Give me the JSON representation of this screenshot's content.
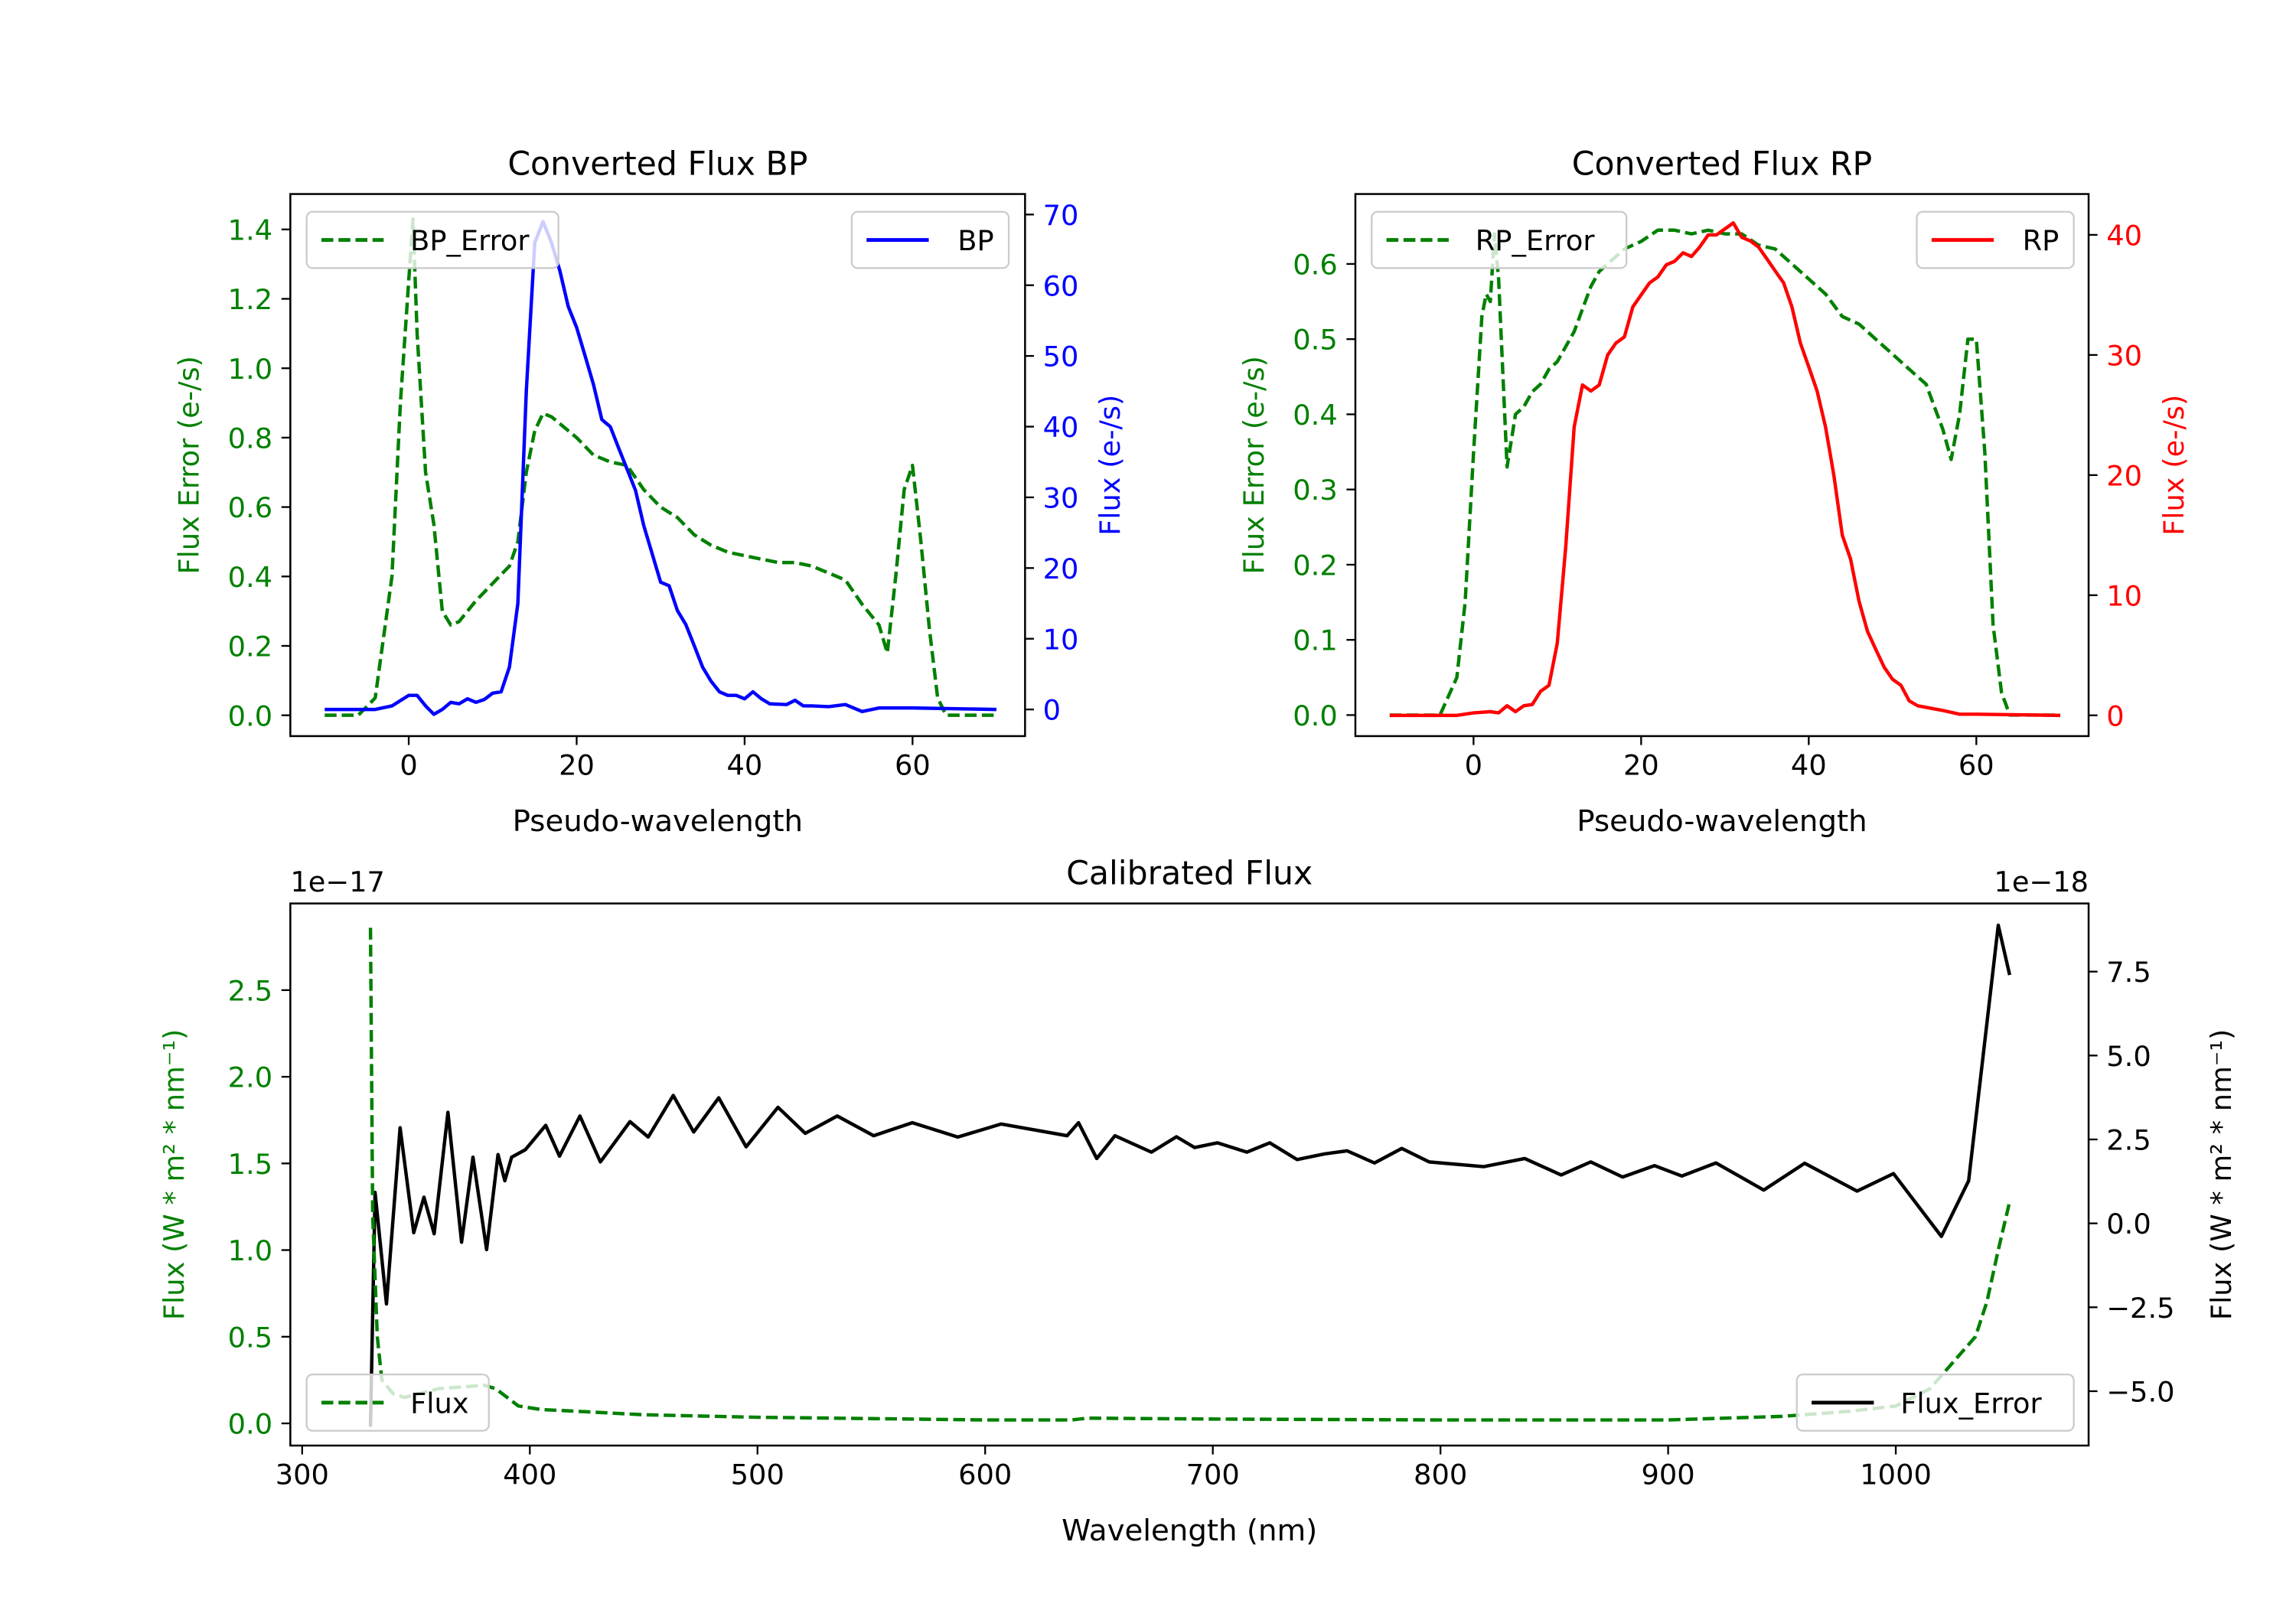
{
  "colors": {
    "green": "#008000",
    "blue": "#0000ff",
    "red": "#ff0000",
    "black": "#000000"
  },
  "chart_data": [
    {
      "id": "bp",
      "type": "line",
      "title": "Converted Flux BP",
      "xlabel": "Pseudo-wavelength",
      "ylabel_left": "Flux Error (e-/s)",
      "ylabel_right": "Flux (e-/s)",
      "xlim": [
        -14.1,
        73.4
      ],
      "ylim_left": [
        -0.06,
        1.502
      ],
      "ylim_right": [
        -3.77,
        72.9
      ],
      "xticks": [
        0,
        20,
        40,
        60
      ],
      "xtick_labels": [
        "0",
        "20",
        "40",
        "60"
      ],
      "yticks_left": [
        0.0,
        0.2,
        0.4,
        0.6,
        0.8,
        1.0,
        1.2,
        1.4
      ],
      "ytick_labels_left": [
        "0.0",
        "0.2",
        "0.4",
        "0.6",
        "0.8",
        "1.0",
        "1.2",
        "1.4"
      ],
      "yticks_right": [
        0,
        10,
        20,
        30,
        40,
        50,
        60,
        70
      ],
      "ytick_labels_right": [
        "0",
        "10",
        "20",
        "30",
        "40",
        "50",
        "60",
        "70"
      ],
      "left_color": "#008000",
      "right_color": "#0000ff",
      "legend_left": {
        "label": "BP_Error",
        "placement": "upper-left"
      },
      "legend_right": {
        "label": "BP",
        "placement": "upper-right"
      },
      "series": [
        {
          "name": "BP_Error",
          "axis": "left",
          "style": "dashed",
          "color": "#008000",
          "x": [
            -10,
            -6,
            -4,
            -2,
            -1,
            0,
            0.5,
            1,
            2,
            3,
            4,
            5,
            6,
            7,
            8,
            10,
            12,
            13,
            14,
            15,
            16,
            17,
            18,
            20,
            22,
            24,
            26,
            28,
            30,
            32,
            34,
            36,
            38,
            40,
            42,
            44,
            46,
            48,
            50,
            52,
            54,
            56,
            57,
            58,
            59,
            60,
            61,
            62,
            63,
            64,
            70
          ],
          "y": [
            0,
            0,
            0.05,
            0.4,
            0.9,
            1.25,
            1.43,
            1.1,
            0.7,
            0.55,
            0.3,
            0.26,
            0.27,
            0.3,
            0.33,
            0.38,
            0.43,
            0.5,
            0.7,
            0.82,
            0.87,
            0.86,
            0.84,
            0.8,
            0.75,
            0.73,
            0.72,
            0.65,
            0.6,
            0.57,
            0.52,
            0.49,
            0.47,
            0.46,
            0.45,
            0.44,
            0.44,
            0.43,
            0.41,
            0.39,
            0.32,
            0.26,
            0.18,
            0.4,
            0.65,
            0.72,
            0.5,
            0.25,
            0.05,
            0,
            0
          ]
        },
        {
          "name": "BP",
          "axis": "right",
          "style": "solid",
          "color": "#0000ff",
          "x": [
            -10,
            -4,
            -2,
            0,
            1,
            2,
            3,
            4,
            5,
            6,
            7,
            8,
            9,
            10,
            11,
            12,
            13,
            14,
            15,
            16,
            17,
            18,
            19,
            20,
            21,
            22,
            23,
            24,
            25,
            26,
            27,
            28,
            29,
            30,
            31,
            32,
            33,
            34,
            35,
            36,
            37,
            38,
            39,
            40,
            41,
            42,
            43,
            45,
            46,
            47,
            48,
            50,
            52,
            54,
            56,
            60,
            70
          ],
          "y": [
            0,
            0,
            0.5,
            2,
            2,
            0.5,
            -0.7,
            0,
            1,
            0.8,
            1.5,
            1,
            1.4,
            2.3,
            2.5,
            6,
            15,
            45,
            66,
            69,
            66,
            62,
            57,
            54,
            50,
            46,
            41,
            40,
            37,
            34,
            31,
            26,
            22,
            18,
            17.5,
            14,
            12,
            9,
            6,
            4,
            2.5,
            2,
            2,
            1.5,
            2.5,
            1.5,
            0.8,
            0.7,
            1.3,
            0.5,
            0.5,
            0.4,
            0.7,
            -0.3,
            0.2,
            0.2,
            0
          ]
        }
      ]
    },
    {
      "id": "rp",
      "type": "line",
      "title": "Converted Flux RP",
      "xlabel": "Pseudo-wavelength",
      "ylabel_left": "Flux Error (e-/s)",
      "ylabel_right": "Flux (e-/s)",
      "xlim": [
        -14.1,
        73.4
      ],
      "ylim_left": [
        -0.028,
        0.693
      ],
      "ylim_right": [
        -1.73,
        43.4
      ],
      "xticks": [
        0,
        20,
        40,
        60
      ],
      "xtick_labels": [
        "0",
        "20",
        "40",
        "60"
      ],
      "yticks_left": [
        0.0,
        0.1,
        0.2,
        0.3,
        0.4,
        0.5,
        0.6
      ],
      "ytick_labels_left": [
        "0.0",
        "0.1",
        "0.2",
        "0.3",
        "0.4",
        "0.5",
        "0.6"
      ],
      "yticks_right": [
        0,
        10,
        20,
        30,
        40
      ],
      "ytick_labels_right": [
        "0",
        "10",
        "20",
        "30",
        "40"
      ],
      "left_color": "#008000",
      "right_color": "#ff0000",
      "legend_left": {
        "label": "RP_Error",
        "placement": "upper-left"
      },
      "legend_right": {
        "label": "RP",
        "placement": "upper-right"
      },
      "series": [
        {
          "name": "RP_Error",
          "axis": "left",
          "style": "dashed",
          "color": "#008000",
          "x": [
            -10,
            -4,
            -2,
            -1,
            0,
            1,
            1.5,
            2,
            2.5,
            3,
            4,
            5,
            6,
            7,
            8,
            9,
            10,
            11,
            12,
            13,
            14,
            15,
            16,
            18,
            20,
            22,
            24,
            26,
            28,
            30,
            32,
            34,
            36,
            38,
            40,
            42,
            44,
            46,
            48,
            50,
            52,
            54,
            55,
            56,
            57,
            58,
            59,
            60,
            61,
            62,
            63,
            64,
            70
          ],
          "y": [
            0,
            0,
            0.05,
            0.15,
            0.35,
            0.53,
            0.56,
            0.55,
            0.64,
            0.58,
            0.33,
            0.4,
            0.41,
            0.43,
            0.44,
            0.46,
            0.47,
            0.49,
            0.51,
            0.54,
            0.57,
            0.59,
            0.6,
            0.62,
            0.63,
            0.645,
            0.645,
            0.64,
            0.645,
            0.64,
            0.64,
            0.625,
            0.62,
            0.6,
            0.58,
            0.56,
            0.53,
            0.52,
            0.5,
            0.48,
            0.46,
            0.44,
            0.41,
            0.38,
            0.34,
            0.4,
            0.5,
            0.5,
            0.35,
            0.12,
            0.03,
            0,
            0
          ]
        },
        {
          "name": "RP",
          "axis": "right",
          "style": "solid",
          "color": "#ff0000",
          "x": [
            -10,
            -2,
            0,
            2,
            3,
            4,
            5,
            6,
            7,
            8,
            9,
            10,
            11,
            12,
            13,
            14,
            15,
            16,
            17,
            18,
            19,
            20,
            21,
            22,
            23,
            24,
            25,
            26,
            27,
            28,
            29,
            30,
            31,
            32,
            33,
            34,
            35,
            36,
            37,
            38,
            39,
            40,
            41,
            42,
            43,
            44,
            45,
            46,
            47,
            48,
            49,
            50,
            51,
            52,
            53,
            56,
            58,
            60,
            70
          ],
          "y": [
            0,
            0,
            0.2,
            0.3,
            0.2,
            0.8,
            0.3,
            0.8,
            0.9,
            2,
            2.5,
            6,
            14,
            24,
            27.5,
            27,
            27.5,
            30,
            31,
            31.5,
            34,
            35,
            36,
            36.5,
            37.5,
            37.8,
            38.5,
            38.2,
            39,
            40,
            40,
            40.5,
            41,
            39.8,
            39.5,
            39,
            38,
            37,
            36,
            34,
            31,
            29,
            27,
            24,
            20,
            15,
            13,
            9.5,
            7,
            5.5,
            4,
            3,
            2.5,
            1.2,
            0.8,
            0.4,
            0.1,
            0.1,
            0
          ]
        }
      ]
    },
    {
      "id": "cal",
      "type": "line",
      "title": "Calibrated Flux",
      "xlabel": "Wavelength (nm)",
      "ylabel_left": "Flux (W * m² * nm⁻¹)",
      "ylabel_right": "Flux (W * m² * nm⁻¹)",
      "offset_left": "1e−17",
      "offset_right": "1e−18",
      "xlim": [
        294.8,
        1084.7
      ],
      "ylim_left": [
        -0.128,
        3.0
      ],
      "ylim_right": [
        -6.62,
        9.53
      ],
      "xticks": [
        300,
        400,
        500,
        600,
        700,
        800,
        900,
        1000
      ],
      "xtick_labels": [
        "300",
        "400",
        "500",
        "600",
        "700",
        "800",
        "900",
        "1000"
      ],
      "yticks_left": [
        0.0,
        0.5,
        1.0,
        1.5,
        2.0,
        2.5
      ],
      "ytick_labels_left": [
        "0.0",
        "0.5",
        "1.0",
        "1.5",
        "2.0",
        "2.5"
      ],
      "yticks_right": [
        -5.0,
        -2.5,
        0.0,
        2.5,
        5.0,
        7.5
      ],
      "ytick_labels_right": [
        "−5.0",
        "−2.5",
        "0.0",
        "2.5",
        "5.0",
        "7.5"
      ],
      "left_color": "#008000",
      "right_color": "#000000",
      "legend_left": {
        "label": "Flux",
        "placement": "lower-left"
      },
      "legend_right": {
        "label": "Flux_Error",
        "placement": "lower-right"
      },
      "series": [
        {
          "name": "Flux",
          "axis": "right",
          "style": "solid",
          "color": "#000000",
          "x": [
            330,
            332,
            337,
            343,
            349,
            353.5,
            358,
            364,
            370,
            375,
            381,
            386,
            389,
            392,
            398,
            407,
            413,
            422,
            431,
            444,
            452,
            463,
            472,
            483,
            495,
            509,
            521,
            535,
            551,
            568,
            588,
            607,
            636,
            641,
            649,
            657,
            673,
            684,
            692,
            702,
            715,
            725,
            737,
            749,
            759,
            771,
            783,
            795,
            819,
            837,
            853,
            866,
            880,
            894,
            906,
            921,
            942,
            960,
            983,
            999,
            1020,
            1032,
            1045,
            1050
          ],
          "y": [
            -6.06,
            0.92,
            -2.4,
            2.85,
            -0.28,
            0.78,
            -0.31,
            3.31,
            -0.56,
            1.97,
            -0.78,
            2.05,
            1.27,
            1.97,
            2.19,
            2.92,
            2.0,
            3.2,
            1.83,
            3.03,
            2.57,
            3.81,
            2.72,
            3.74,
            2.28,
            3.46,
            2.68,
            3.2,
            2.61,
            3.0,
            2.57,
            2.96,
            2.61,
            3.0,
            1.93,
            2.61,
            2.12,
            2.58,
            2.26,
            2.4,
            2.12,
            2.4,
            1.9,
            2.07,
            2.16,
            1.8,
            2.23,
            1.83,
            1.69,
            1.93,
            1.44,
            1.83,
            1.38,
            1.72,
            1.41,
            1.8,
            0.99,
            1.79,
            0.96,
            1.48,
            -0.39,
            1.27,
            8.88,
            7.4
          ]
        },
        {
          "name": "Flux_Error",
          "axis": "left",
          "style": "dashed",
          "color": "#008000",
          "x": [
            330,
            331,
            333,
            335,
            340,
            345,
            360,
            380,
            385,
            395,
            405,
            420,
            450,
            500,
            600,
            638,
            645,
            700,
            800,
            900,
            950,
            980,
            1000,
            1015,
            1025,
            1035,
            1040,
            1045,
            1050
          ],
          "y": [
            2.86,
            1.2,
            0.5,
            0.25,
            0.17,
            0.15,
            0.2,
            0.22,
            0.2,
            0.1,
            0.08,
            0.07,
            0.05,
            0.035,
            0.02,
            0.02,
            0.03,
            0.025,
            0.02,
            0.02,
            0.04,
            0.07,
            0.1,
            0.2,
            0.35,
            0.5,
            0.7,
            1.0,
            1.28
          ]
        }
      ]
    }
  ]
}
